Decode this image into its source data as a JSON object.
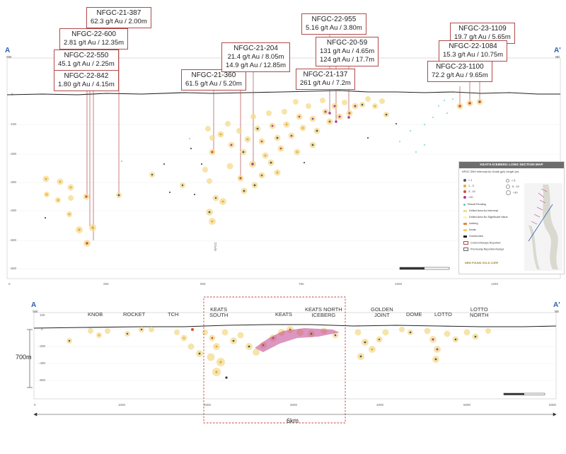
{
  "upper_section": {
    "start_label": "A",
    "start_dir": "SW",
    "end_label": "A'",
    "end_dir": "NE",
    "x_ticks": [
      "0",
      "250",
      "500",
      "750",
      "1000",
      "1250",
      "1500"
    ],
    "y_ticks": [
      "0",
      "-100",
      "-200",
      "-300",
      "-400",
      "-500",
      "-600",
      "-700"
    ],
    "hole_tag": "NFGC"
  },
  "callouts": [
    {
      "hole": "NFGC-21-387",
      "result": "62.3 g/t Au / 2.00m"
    },
    {
      "hole": "NFGC-22-600",
      "result": "2.81 g/t Au / 12.35m"
    },
    {
      "hole": "NFGC-22-550",
      "result": "45.1 g/t Au / 2.25m"
    },
    {
      "hole": "NFGC-22-842",
      "result": "1.80 g/t Au / 4.15m"
    },
    {
      "hole": "NFGC-21-360",
      "result": "61.5 g/t Au / 5.20m"
    },
    {
      "hole": "NFGC-21-204",
      "result": "21.4 g/t Au / 8.05m",
      "result2": "14.9 g/t Au / 12.85m"
    },
    {
      "hole": "NFGC-22-955",
      "result": "5.16 g/t Au / 3.80m"
    },
    {
      "hole": "NFGC-20-59",
      "result": "131 g/t Au / 4.65m",
      "result2": "124 g/t Au / 17.7m"
    },
    {
      "hole": "NFGC-21-137",
      "result": "261 g/t Au / 7.2m"
    },
    {
      "hole": "NFGC-23-1109",
      "result": "19.7 g/t Au / 5.65m"
    },
    {
      "hole": "NFGC-22-1084",
      "result": "15.3 g/t Au / 10.75m"
    },
    {
      "hole": "NFGC-23-1100",
      "result": "72.2 g/t Au / 9.65m"
    }
  ],
  "legend": {
    "title": "KEATS-ICEBERG LONG SECTION MAP",
    "grade_header": "NFGC DDH Intercept Au Grade (g/t)",
    "length_header": "Length (m)",
    "grades": [
      {
        "label": "< 1",
        "color": "#555555"
      },
      {
        "label": "1 - 3",
        "color": "#e9a73c"
      },
      {
        "label": "3 - 10",
        "color": "#d2502e"
      },
      {
        "label": ">10",
        "color": "#b03a9a"
      }
    ],
    "lengths": [
      "< 5",
      "5 - 10",
      ">10"
    ],
    "items": [
      "Result Pending",
      "Drilled Area Au Intercept",
      "Drilled Area No Significant Value",
      "Iceberg",
      "Keats",
      "Overburden",
      "Current Assays Reported",
      "Previously Reported Assays"
    ],
    "logo_text": "NEW FOUND GOLD CORP"
  },
  "lower_section": {
    "start_label": "A",
    "start_dir": "SW",
    "end_label": "A'",
    "end_dir": "NE",
    "zones": [
      {
        "name": "KNOB"
      },
      {
        "name": "ROCKET"
      },
      {
        "name": "TCH"
      },
      {
        "name": "KEATS\nSOUTH"
      },
      {
        "name": "KEATS"
      },
      {
        "name": "KEATS NORTH\nICEBERG"
      },
      {
        "name": "GOLDEN\nJOINT"
      },
      {
        "name": "DOME"
      },
      {
        "name": "LOTTO"
      },
      {
        "name": "LOTTO\nNORTH"
      }
    ],
    "x_ticks": [
      "0",
      "1000",
      "2000",
      "3000",
      "4000",
      "5000",
      "6000"
    ],
    "y_ticks": [
      "100",
      "0",
      "-200",
      "-400",
      "-600"
    ],
    "depth_label": "700m",
    "length_label": "6km"
  },
  "colors": {
    "halo": "#f3dc8e",
    "grade_low": "#555555",
    "grade_mid": "#e9a73c",
    "grade_high": "#d2502e",
    "grade_top": "#b03a9a",
    "pending": "#5cc3c9",
    "callout_border": "#b04a4a",
    "section_letter": "#2b5fa8",
    "iceberg_zone": "#c0408e",
    "box_dash": "#c04040"
  }
}
